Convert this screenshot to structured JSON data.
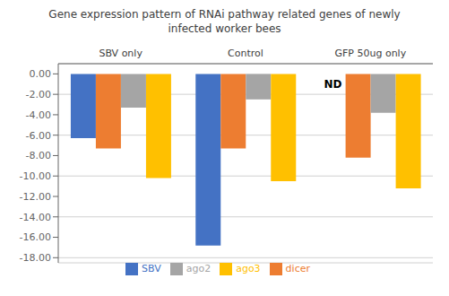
{
  "chart_data": {
    "type": "bar",
    "title": "Gene expression pattern of RNAi pathway related genes of newly\ninfected worker bees",
    "categories": [
      "SBV only",
      "Control",
      "GFP 50ug only"
    ],
    "series": [
      {
        "name": "SBV",
        "color": "#4472C4",
        "values": [
          -6.3,
          -16.8,
          null
        ]
      },
      {
        "name": "dicer",
        "color": "#ED7D31",
        "values": [
          -7.3,
          -7.3,
          -8.2
        ]
      },
      {
        "name": "ago2",
        "color": "#A5A5A5",
        "values": [
          -3.3,
          -2.5,
          -3.8
        ]
      },
      {
        "name": "ago3",
        "color": "#FFC000",
        "values": [
          -10.2,
          -10.5,
          -11.2
        ]
      }
    ],
    "ylim": [
      -18.5,
      1.0
    ],
    "yticks": [
      {
        "value": 0,
        "label": "0.00"
      },
      {
        "value": -2,
        "label": "-2.00"
      },
      {
        "value": -4,
        "label": "-4.00"
      },
      {
        "value": -6,
        "label": "-6.00"
      },
      {
        "value": -8,
        "label": "-8.00"
      },
      {
        "value": -10,
        "label": "-10.00"
      },
      {
        "value": -12,
        "label": "-12.00"
      },
      {
        "value": -14,
        "label": "-14.00"
      },
      {
        "value": -16,
        "label": "-16.00"
      },
      {
        "value": -18,
        "label": "-18.00"
      }
    ],
    "grid": true,
    "legend": "bottom",
    "annotations": [
      {
        "text": "ND",
        "category": "GFP 50ug only",
        "series": "SBV"
      }
    ]
  }
}
